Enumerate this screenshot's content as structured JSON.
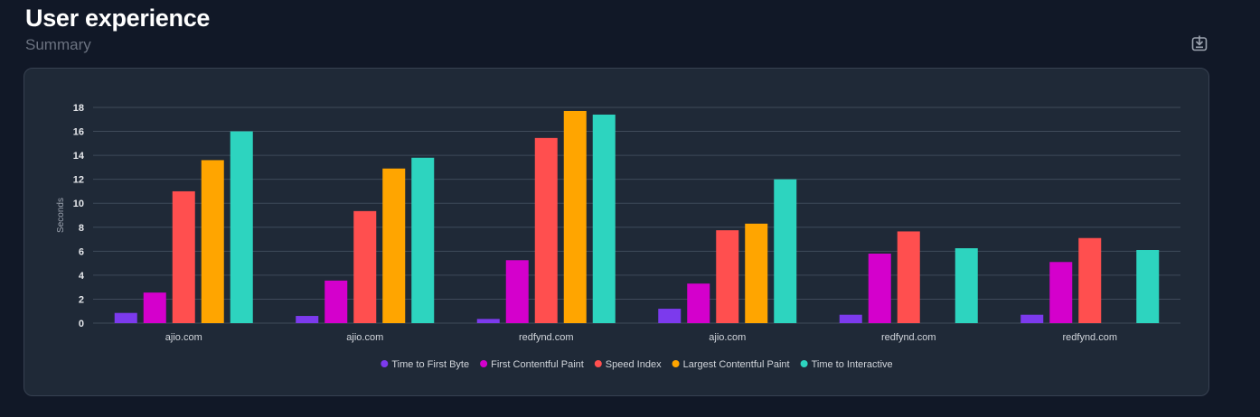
{
  "header": {
    "title": "User experience",
    "subtitle": "Summary"
  },
  "icons": {
    "download": "download-icon"
  },
  "colors": {
    "background": "#111827",
    "card": "#1f2937",
    "grid": "#374151"
  },
  "chart_data": {
    "type": "bar",
    "ylabel": "Seconds",
    "xlabel": "",
    "ylim": [
      0,
      18
    ],
    "yticks": [
      0,
      2,
      4,
      6,
      8,
      10,
      12,
      14,
      16,
      18
    ],
    "grid": true,
    "legend_position": "bottom",
    "categories": [
      "ajio.com",
      "ajio.com",
      "redfynd.com",
      "ajio.com",
      "redfynd.com",
      "redfynd.com"
    ],
    "series": [
      {
        "name": "Time to First Byte",
        "color": "#7c3aed",
        "values": [
          0.85,
          0.6,
          0.35,
          1.2,
          0.7,
          0.7
        ]
      },
      {
        "name": "First Contentful Paint",
        "color": "#d400cc",
        "values": [
          2.55,
          3.55,
          5.25,
          3.3,
          5.8,
          5.1
        ]
      },
      {
        "name": "Speed Index",
        "color": "#ff4f4f",
        "values": [
          11.0,
          9.35,
          15.45,
          7.75,
          7.65,
          7.1
        ]
      },
      {
        "name": "Largest Contentful Paint",
        "color": "#ffa500",
        "values": [
          13.6,
          12.9,
          17.7,
          8.3,
          null,
          null
        ]
      },
      {
        "name": "Time to Interactive",
        "color": "#2dd4bf",
        "values": [
          16.0,
          13.8,
          17.4,
          12.0,
          6.25,
          6.1
        ]
      }
    ]
  }
}
